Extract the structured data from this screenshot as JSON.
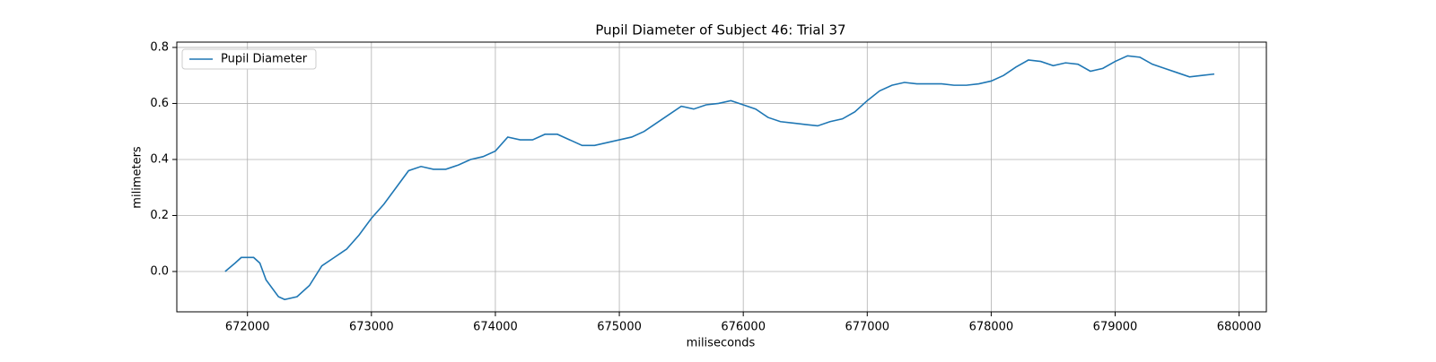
{
  "chart_data": {
    "type": "line",
    "title": "Pupil Diameter of Subject 46: Trial 37",
    "x_label": "miliseconds",
    "y_label": "milimeters",
    "x": [
      671820,
      671900,
      671950,
      672050,
      672100,
      672150,
      672250,
      672300,
      672400,
      672500,
      672600,
      672700,
      672800,
      672900,
      673000,
      673100,
      673200,
      673300,
      673400,
      673500,
      673600,
      673700,
      673800,
      673900,
      674000,
      674100,
      674200,
      674300,
      674400,
      674500,
      674600,
      674700,
      674800,
      674900,
      675000,
      675100,
      675200,
      675300,
      675400,
      675500,
      675600,
      675700,
      675800,
      675900,
      676000,
      676100,
      676200,
      676300,
      676400,
      676500,
      676600,
      676700,
      676800,
      676900,
      677000,
      677100,
      677200,
      677300,
      677400,
      677500,
      677600,
      677700,
      677800,
      677900,
      678000,
      678100,
      678200,
      678300,
      678400,
      678500,
      678600,
      678700,
      678800,
      678900,
      679000,
      679100,
      679200,
      679300,
      679400,
      679500,
      679600,
      679700,
      679800
    ],
    "series": [
      {
        "name": "Pupil Diameter",
        "color": "#1f77b4",
        "values": [
          0.0,
          0.03,
          0.05,
          0.05,
          0.03,
          -0.03,
          -0.09,
          -0.1,
          -0.09,
          -0.05,
          0.02,
          0.05,
          0.08,
          0.13,
          0.19,
          0.24,
          0.3,
          0.36,
          0.375,
          0.365,
          0.365,
          0.38,
          0.4,
          0.41,
          0.43,
          0.48,
          0.47,
          0.47,
          0.49,
          0.49,
          0.47,
          0.45,
          0.45,
          0.46,
          0.47,
          0.48,
          0.5,
          0.53,
          0.56,
          0.59,
          0.58,
          0.595,
          0.6,
          0.61,
          0.595,
          0.58,
          0.55,
          0.535,
          0.53,
          0.525,
          0.52,
          0.535,
          0.545,
          0.57,
          0.61,
          0.645,
          0.665,
          0.675,
          0.67,
          0.67,
          0.67,
          0.665,
          0.665,
          0.67,
          0.68,
          0.7,
          0.73,
          0.755,
          0.75,
          0.735,
          0.745,
          0.74,
          0.715,
          0.725,
          0.75,
          0.77,
          0.765,
          0.74,
          0.725,
          0.71,
          0.695,
          0.7,
          0.705
        ]
      }
    ],
    "xlim": [
      671430,
      680220
    ],
    "ylim": [
      -0.144,
      0.819
    ],
    "xticks": [
      672000,
      673000,
      674000,
      675000,
      676000,
      677000,
      678000,
      679000,
      680000
    ],
    "yticks": [
      {
        "value": 0,
        "label": "0.0"
      },
      0.2,
      0.4,
      0.6,
      0.8
    ],
    "grid": true,
    "legend": "upper-left"
  }
}
